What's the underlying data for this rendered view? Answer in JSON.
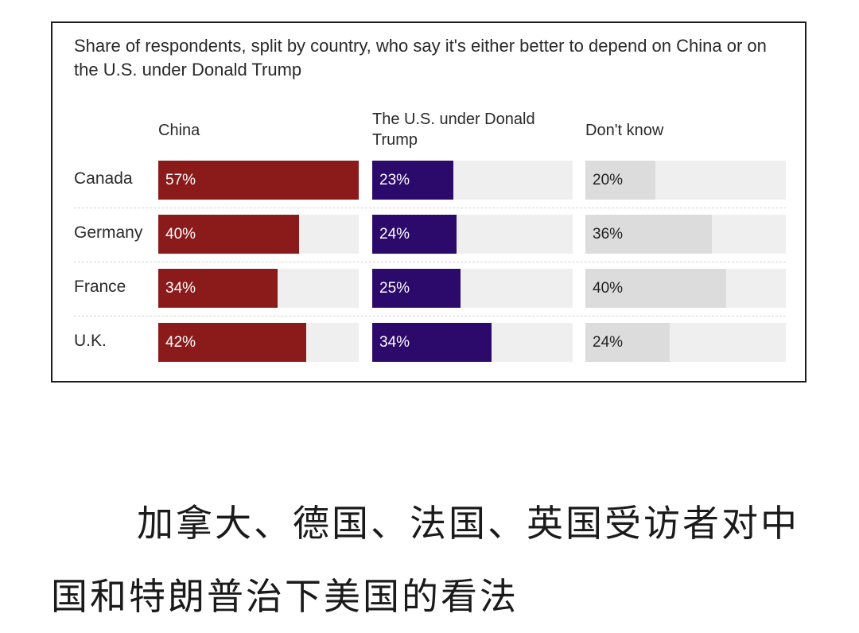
{
  "chart_data": {
    "type": "bar",
    "title": "Share of respondents, split by country, who say it's either better to depend on China or on the U.S. under Donald Trump",
    "categories": [
      "Canada",
      "Germany",
      "France",
      "U.K."
    ],
    "series": [
      {
        "name": "China",
        "values": [
          57,
          40,
          34,
          42
        ],
        "labels": [
          "57%",
          "40%",
          "34%",
          "42%"
        ],
        "color": "#8b1a1a",
        "text_color": "#ffffff"
      },
      {
        "name": "The U.S. under Donald Trump",
        "values": [
          23,
          24,
          25,
          34
        ],
        "labels": [
          "23%",
          "24%",
          "25%",
          "34%"
        ],
        "color": "#2c0a6b",
        "text_color": "#ffffff"
      },
      {
        "name": "Don't know",
        "values": [
          20,
          36,
          40,
          24
        ],
        "labels": [
          "20%",
          "36%",
          "40%",
          "24%"
        ],
        "color": "#dcdcdc",
        "text_color": "#222222"
      }
    ],
    "unit": "%",
    "xlim": [
      0,
      57
    ],
    "track_color": "#efefef"
  },
  "caption": "加拿大、德国、法国、英国受访者对中国和特朗普治下美国的看法"
}
